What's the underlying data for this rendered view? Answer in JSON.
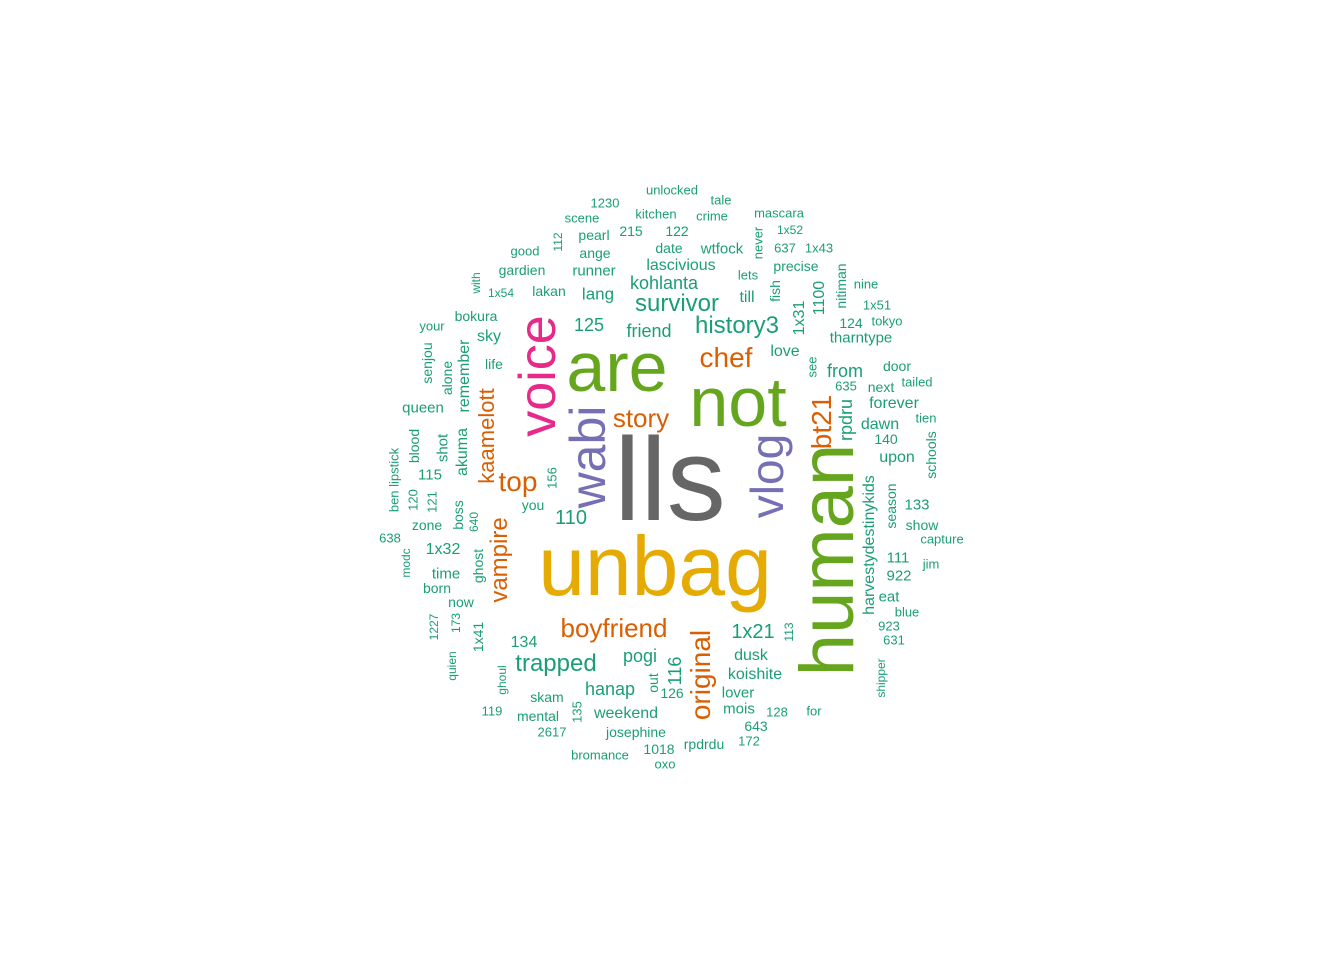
{
  "palette": {
    "teal": "#1b9e77",
    "orange": "#d95f02",
    "purple": "#7570b3",
    "pink": "#e7298a",
    "green": "#66a61e",
    "gold": "#e6ab02",
    "gray": "#666666"
  },
  "words": [
    "lls",
    "unbag",
    "human",
    "not",
    "are",
    "voice",
    "wabi",
    "vlog",
    "bt21",
    "chef",
    "top",
    "story",
    "original",
    "boyfriend",
    "kaamelott",
    "vampire",
    "history3",
    "survivor",
    "trapped",
    "1x21",
    "110",
    "125",
    "friend",
    "kohlanta",
    "hanap",
    "pogi",
    "koishite",
    "dusk",
    "116",
    "rpdru",
    "harvestydestinykids",
    "from",
    "forever",
    "dawn",
    "love",
    "tharntype",
    "lang",
    "till",
    "lascivious",
    "runner",
    "wtfock",
    "date",
    "122",
    "215",
    "pearl",
    "ange",
    "gardien",
    "good",
    "lakan",
    "1x54",
    "with",
    "unlocked",
    "tale",
    "1230",
    "kitchen",
    "crime",
    "mascara",
    "scene",
    "112",
    "1x52",
    "637",
    "1x43",
    "precise",
    "never",
    "lets",
    "fish",
    "nitiman",
    "nine",
    "1x51",
    "tokyo",
    "124",
    "1100",
    "1x31",
    "door",
    "tailed",
    "see",
    "635",
    "next",
    "tien",
    "140",
    "upon",
    "schools",
    "season",
    "133",
    "show",
    "capture",
    "922",
    "111",
    "jim",
    "eat",
    "923",
    "blue",
    "631",
    "shipper",
    "113",
    "128",
    "for",
    "172",
    "643",
    "mois",
    "lover",
    "rpdrdu",
    "126",
    "out",
    "1018",
    "josephine",
    "weekend",
    "mental",
    "135",
    "skam",
    "bromance",
    "2617",
    "119",
    "ghoul",
    "quien",
    "173",
    "1227",
    "1x41",
    "now",
    "born",
    "time",
    "ghost",
    "1x32",
    "zone",
    "boss",
    "640",
    "modc",
    "638",
    "ben lipstick",
    "120",
    "121",
    "115",
    "shot",
    "blood",
    "akuma",
    "queen",
    "alone",
    "senjou",
    "remember",
    "your",
    "bokura",
    "sky",
    "life",
    "156",
    "you",
    "134",
    "oxo"
  ]
}
